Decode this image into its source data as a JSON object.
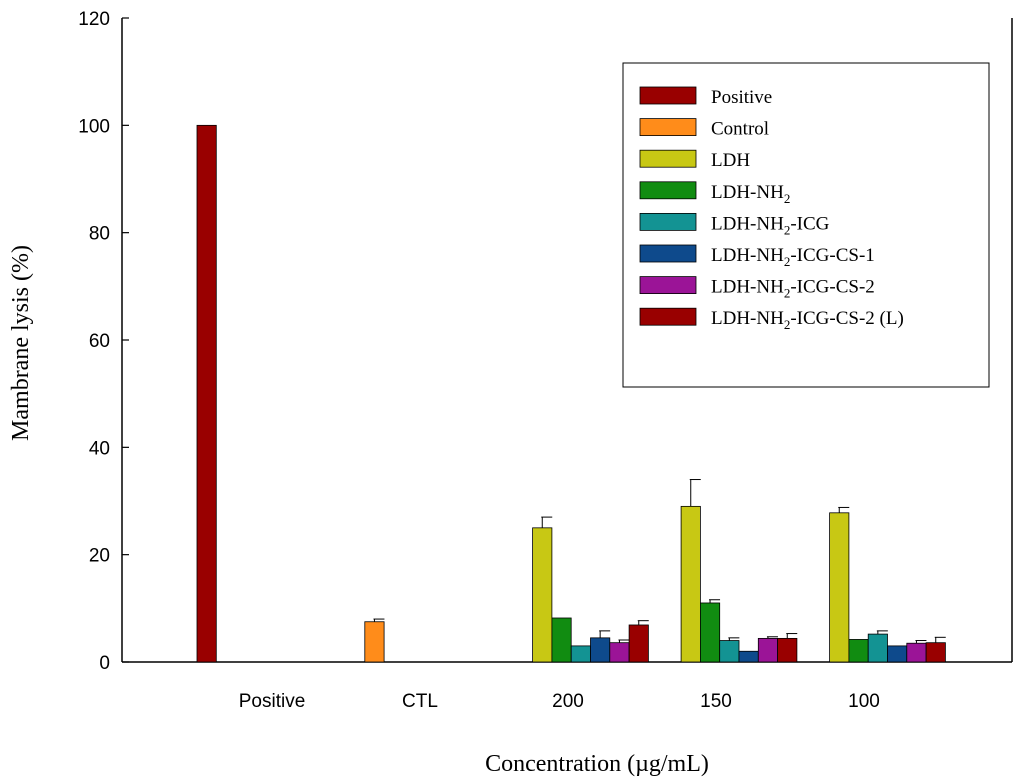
{
  "chart_data": {
    "type": "bar",
    "title": "",
    "xlabel": "Concentration (µg/mL)",
    "ylabel": "Mambrane lysis (%)",
    "ylim": [
      0,
      120
    ],
    "yticks": [
      "0",
      "20",
      "40",
      "60",
      "80",
      "100",
      "120"
    ],
    "categories": [
      "Positive",
      "CTL",
      "200",
      "150",
      "100"
    ],
    "legend_position": "top-right",
    "series": [
      {
        "name": "Positive",
        "label_main": "Positive",
        "label_sub": "",
        "label_tail": "",
        "color": "#990000",
        "values": [
          100,
          null,
          null,
          null,
          null
        ],
        "errors": [
          0,
          null,
          null,
          null,
          null
        ]
      },
      {
        "name": "Control",
        "label_main": "Control",
        "label_sub": "",
        "label_tail": "",
        "color": "#ff8c1a",
        "values": [
          null,
          7.5,
          null,
          null,
          null
        ],
        "errors": [
          null,
          0.5,
          null,
          null,
          null
        ]
      },
      {
        "name": "LDH",
        "label_main": "LDH",
        "label_sub": "",
        "label_tail": "",
        "color": "#c8c814",
        "values": [
          null,
          null,
          25,
          29,
          27.8
        ],
        "errors": [
          null,
          null,
          2,
          5,
          1
        ]
      },
      {
        "name": "LDH-NH2",
        "label_main": "LDH-NH",
        "label_sub": "2",
        "label_tail": "",
        "color": "#118c11",
        "values": [
          null,
          null,
          8.2,
          11,
          4.2
        ],
        "errors": [
          null,
          null,
          0,
          0.6,
          0
        ]
      },
      {
        "name": "LDH-NH2-ICG",
        "label_main": "LDH-NH",
        "label_sub": "2",
        "label_tail": "-ICG",
        "color": "#139393",
        "values": [
          null,
          null,
          3,
          4,
          5.2
        ],
        "errors": [
          null,
          null,
          0,
          0.5,
          0.6
        ]
      },
      {
        "name": "LDH-NH2-ICG-CS-1",
        "label_main": "LDH-NH",
        "label_sub": "2",
        "label_tail": "-ICG-CS-1",
        "color": "#0e4a8c",
        "values": [
          null,
          null,
          4.5,
          2,
          3
        ],
        "errors": [
          null,
          null,
          1.3,
          0,
          0
        ]
      },
      {
        "name": "LDH-NH2-ICG-CS-2",
        "label_main": "LDH-NH",
        "label_sub": "2",
        "label_tail": "-ICG-CS-2",
        "color": "#9b1497",
        "values": [
          null,
          null,
          3.6,
          4.4,
          3.5
        ],
        "errors": [
          null,
          null,
          0.5,
          0.3,
          0.5
        ]
      },
      {
        "name": "LDH-NH2-ICG-CS-2 (L)",
        "label_main": "LDH-NH",
        "label_sub": "2",
        "label_tail": "-ICG-CS-2 (L)",
        "color": "#990000",
        "values": [
          null,
          null,
          6.9,
          4.4,
          3.6
        ],
        "errors": [
          null,
          null,
          0.8,
          0.9,
          1
        ]
      }
    ]
  }
}
